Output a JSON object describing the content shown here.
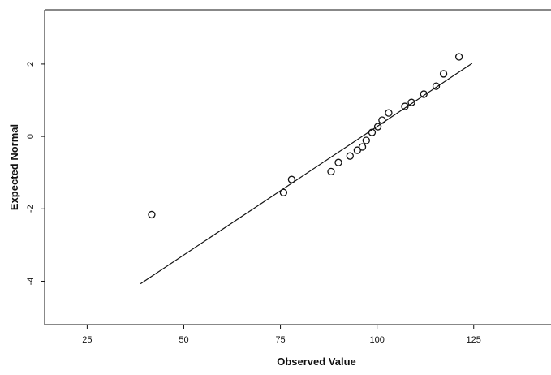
{
  "chart_data": {
    "type": "scatter",
    "x_label": "Observed Value",
    "y_label": "Expected Normal",
    "color": "#111111",
    "series": [
      {
        "x": [
          41.7,
          75.8,
          77.9,
          88.1,
          90.0,
          93.0,
          94.9,
          96.2,
          97.2,
          98.7,
          100.2,
          101.3,
          103.0,
          107.2,
          108.9,
          112.1,
          115.3,
          117.2,
          121.2
        ],
        "values": [
          -2.16,
          -1.55,
          -1.19,
          -0.97,
          -0.72,
          -0.54,
          -0.38,
          -0.29,
          -0.11,
          0.11,
          0.27,
          0.45,
          0.65,
          0.83,
          0.94,
          1.17,
          1.39,
          1.73,
          2.2
        ]
      }
    ],
    "reference_line": {
      "x": [
        38.8,
        124.6
      ],
      "values": [
        -4.07,
        2.02
      ]
    },
    "xlim": [
      14,
      145
    ],
    "ylim": [
      -5.2,
      3.5
    ],
    "xticks": [
      25,
      50,
      75,
      100,
      125
    ],
    "yticks": [
      2,
      0,
      -2,
      -4
    ]
  }
}
